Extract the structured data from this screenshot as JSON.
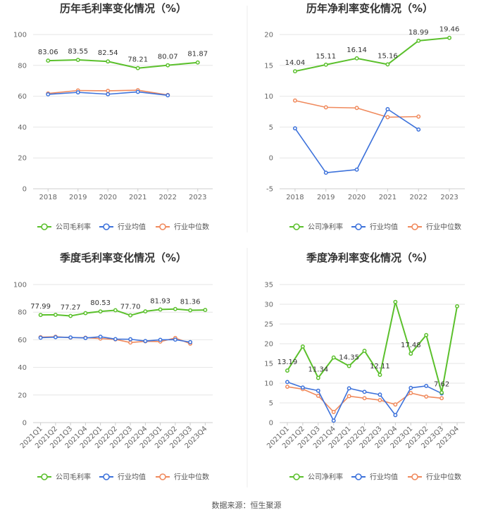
{
  "colors": {
    "company": "#5bc02c",
    "industry_avg": "#3d72db",
    "industry_median": "#f08a5d",
    "grid": "#e6e6e6",
    "divider": "#eeeeee"
  },
  "legend_markers": {
    "company": "circle-line-marker",
    "industry_avg": "circle-line-marker",
    "industry_median": "circle-line-marker"
  },
  "source_text": "数据来源：恒生聚源",
  "chart_data": [
    {
      "type": "line",
      "title": "历年毛利率变化情况（%）",
      "categories": [
        "2018",
        "2019",
        "2020",
        "2021",
        "2022",
        "2023"
      ],
      "ylim": [
        0,
        100
      ],
      "yticks": [
        0,
        20,
        40,
        60,
        80,
        100
      ],
      "ytick_labels": [
        "0",
        "20",
        "40",
        "60",
        "80",
        "100"
      ],
      "series": [
        {
          "key": "company",
          "name": "公司毛利率",
          "values": [
            83.06,
            83.55,
            82.54,
            78.21,
            80.07,
            81.87
          ]
        },
        {
          "key": "industry_avg",
          "name": "行业均值",
          "values": [
            61.2,
            62.5,
            61.3,
            62.8,
            60.6,
            null
          ]
        },
        {
          "key": "industry_median",
          "name": "行业中位数",
          "values": [
            61.8,
            63.7,
            63.5,
            63.9,
            60.8,
            null
          ]
        }
      ],
      "labels": [
        {
          "index": 0,
          "text": "83.06"
        },
        {
          "index": 1,
          "text": "83.55"
        },
        {
          "index": 2,
          "text": "82.54"
        },
        {
          "index": 3,
          "text": "78.21"
        },
        {
          "index": 4,
          "text": "80.07"
        },
        {
          "index": 5,
          "text": "81.87"
        }
      ]
    },
    {
      "type": "line",
      "title": "历年净利率变化情况（%）",
      "categories": [
        "2018",
        "2019",
        "2020",
        "2021",
        "2022",
        "2023"
      ],
      "ylim": [
        -5,
        20
      ],
      "yticks": [
        -5,
        0,
        5,
        10,
        15,
        20
      ],
      "ytick_labels": [
        "-5",
        "0",
        "5",
        "10",
        "15",
        "20"
      ],
      "series": [
        {
          "key": "company",
          "name": "公司净利率",
          "values": [
            14.04,
            15.11,
            16.14,
            15.16,
            18.99,
            19.46
          ]
        },
        {
          "key": "industry_avg",
          "name": "行业均值",
          "values": [
            4.8,
            -2.4,
            -1.9,
            7.9,
            4.6,
            null
          ]
        },
        {
          "key": "industry_median",
          "name": "行业中位数",
          "values": [
            9.3,
            8.2,
            8.1,
            6.6,
            6.7,
            null
          ]
        }
      ],
      "labels": [
        {
          "index": 0,
          "text": "14.04"
        },
        {
          "index": 1,
          "text": "15.11"
        },
        {
          "index": 2,
          "text": "16.14"
        },
        {
          "index": 3,
          "text": "15.16"
        },
        {
          "index": 4,
          "text": "18.99"
        },
        {
          "index": 5,
          "text": "19.46"
        }
      ]
    },
    {
      "type": "line",
      "title": "季度毛利率变化情况（%）",
      "categories": [
        "2021Q1",
        "2021Q2",
        "2021Q3",
        "2021Q4",
        "2022Q1",
        "2022Q2",
        "2022Q3",
        "2022Q4",
        "2023Q1",
        "2023Q2",
        "2023Q3",
        "2023Q4"
      ],
      "rotate_x": true,
      "ylim": [
        0,
        100
      ],
      "yticks": [
        0,
        20,
        40,
        60,
        80,
        100
      ],
      "ytick_labels": [
        "0",
        "20",
        "40",
        "60",
        "80",
        "100"
      ],
      "series": [
        {
          "key": "company",
          "name": "公司毛利率",
          "values": [
            77.99,
            78.1,
            77.27,
            79.3,
            80.53,
            81.4,
            77.7,
            80.6,
            81.93,
            82.3,
            81.36,
            81.6
          ]
        },
        {
          "key": "industry_avg",
          "name": "行业均值",
          "values": [
            61.5,
            61.9,
            61.7,
            61.3,
            62.2,
            60.5,
            60.4,
            59.1,
            60.0,
            60.1,
            58.3,
            null
          ]
        },
        {
          "key": "industry_median",
          "name": "行业中位数",
          "values": [
            61.9,
            62.2,
            61.6,
            61.5,
            60.9,
            60.3,
            58.0,
            58.9,
            58.7,
            61.3,
            57.2,
            null
          ]
        }
      ],
      "labels": [
        {
          "index": 0,
          "text": "77.99"
        },
        {
          "index": 2,
          "text": "77.27"
        },
        {
          "index": 4,
          "text": "80.53"
        },
        {
          "index": 6,
          "text": "77.70"
        },
        {
          "index": 8,
          "text": "81.93"
        },
        {
          "index": 10,
          "text": "81.36"
        }
      ]
    },
    {
      "type": "line",
      "title": "季度净利率变化情况（%）",
      "categories": [
        "2021Q1",
        "2021Q2",
        "2021Q3",
        "2021Q4",
        "2022Q1",
        "2022Q2",
        "2022Q3",
        "2022Q4",
        "2023Q1",
        "2023Q2",
        "2023Q3",
        "2023Q4"
      ],
      "rotate_x": true,
      "ylim": [
        0,
        35
      ],
      "yticks": [
        0,
        5,
        10,
        15,
        20,
        25,
        30,
        35
      ],
      "ytick_labels": [
        "0",
        "5",
        "10",
        "15",
        "20",
        "25",
        "30",
        "35"
      ],
      "series": [
        {
          "key": "company",
          "name": "公司净利率",
          "values": [
            13.19,
            19.3,
            11.34,
            16.5,
            14.35,
            18.2,
            12.11,
            30.6,
            17.48,
            22.2,
            7.62,
            29.5
          ]
        },
        {
          "key": "industry_avg",
          "name": "行业均值",
          "values": [
            10.3,
            8.9,
            8.1,
            0.5,
            8.7,
            7.8,
            7.1,
            1.9,
            8.8,
            9.3,
            7.4,
            null
          ]
        },
        {
          "key": "industry_median",
          "name": "行业中位数",
          "values": [
            9.1,
            8.5,
            6.8,
            2.7,
            6.7,
            6.2,
            5.7,
            4.6,
            7.5,
            6.6,
            6.2,
            null
          ]
        }
      ],
      "labels": [
        {
          "index": 0,
          "text": "13.19"
        },
        {
          "index": 2,
          "text": "11.34"
        },
        {
          "index": 4,
          "text": "14.35"
        },
        {
          "index": 6,
          "text": "12.11"
        },
        {
          "index": 8,
          "text": "17.48"
        },
        {
          "index": 10,
          "text": "7.62"
        }
      ]
    }
  ]
}
